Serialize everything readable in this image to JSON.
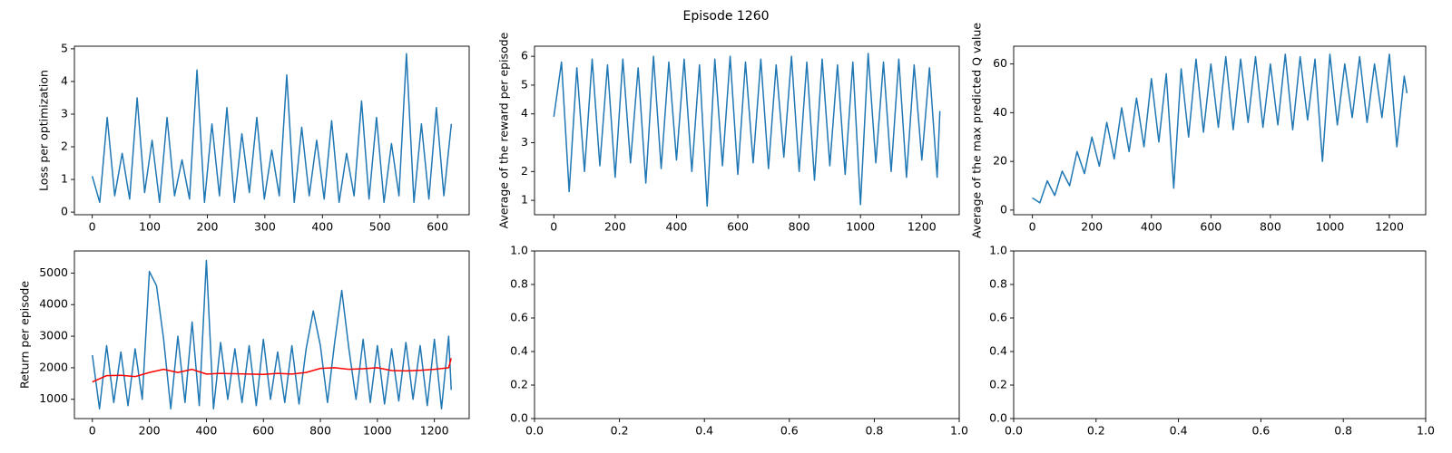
{
  "title": "Episode 1260",
  "chart_data": [
    {
      "type": "line",
      "ylabel": "Loss per optimization",
      "xlim": [
        -31,
        655
      ],
      "ylim": [
        -0.08,
        5.08
      ],
      "xticks": [
        0,
        100,
        200,
        300,
        400,
        500,
        600
      ],
      "yticks": [
        0,
        1,
        2,
        3,
        4,
        5
      ],
      "series": [
        {
          "color": "#1f77b4",
          "x": [
            0,
            13,
            26,
            39,
            52,
            65,
            78,
            91,
            104,
            117,
            130,
            143,
            156,
            169,
            182,
            195,
            208,
            221,
            234,
            247,
            260,
            273,
            286,
            299,
            312,
            325,
            338,
            351,
            364,
            377,
            390,
            403,
            416,
            429,
            442,
            455,
            468,
            481,
            494,
            507,
            520,
            533,
            546,
            559,
            572,
            585,
            598,
            611,
            624
          ],
          "values": [
            1.1,
            0.3,
            2.9,
            0.5,
            1.8,
            0.4,
            3.5,
            0.6,
            2.2,
            0.3,
            2.9,
            0.5,
            1.6,
            0.4,
            4.35,
            0.3,
            2.7,
            0.5,
            3.2,
            0.3,
            2.4,
            0.6,
            2.9,
            0.4,
            1.9,
            0.5,
            4.2,
            0.3,
            2.6,
            0.5,
            2.2,
            0.4,
            2.8,
            0.3,
            1.8,
            0.5,
            3.4,
            0.4,
            2.9,
            0.3,
            2.1,
            0.5,
            4.85,
            0.3,
            2.7,
            0.4,
            3.2,
            0.5,
            2.7
          ]
        }
      ]
    },
    {
      "type": "line",
      "ylabel": "Average of the reward per episode",
      "xlim": [
        -63,
        1322
      ],
      "ylim": [
        0.5,
        6.35
      ],
      "xticks": [
        0,
        200,
        400,
        600,
        800,
        1000,
        1200
      ],
      "yticks": [
        1,
        2,
        3,
        4,
        5,
        6
      ],
      "series": [
        {
          "color": "#1f77b4",
          "x": [
            0,
            25,
            50,
            75,
            100,
            125,
            150,
            175,
            200,
            225,
            250,
            275,
            300,
            325,
            350,
            375,
            400,
            425,
            450,
            475,
            500,
            525,
            550,
            575,
            600,
            625,
            650,
            675,
            700,
            725,
            750,
            775,
            800,
            825,
            850,
            875,
            900,
            925,
            950,
            975,
            1000,
            1025,
            1050,
            1075,
            1100,
            1125,
            1150,
            1175,
            1200,
            1225,
            1250,
            1259
          ],
          "values": [
            3.9,
            5.8,
            1.3,
            5.6,
            2.0,
            5.9,
            2.2,
            5.7,
            1.8,
            5.9,
            2.3,
            5.6,
            1.6,
            6.0,
            2.1,
            5.8,
            2.4,
            5.9,
            2.0,
            5.7,
            0.8,
            5.9,
            2.2,
            6.0,
            1.9,
            5.8,
            2.3,
            5.9,
            2.1,
            5.7,
            2.5,
            6.0,
            2.0,
            5.8,
            1.7,
            5.9,
            2.2,
            5.7,
            1.9,
            5.8,
            0.85,
            6.1,
            2.3,
            5.8,
            2.0,
            5.9,
            1.8,
            5.7,
            2.4,
            5.6,
            1.8,
            4.1
          ]
        }
      ]
    },
    {
      "type": "line",
      "ylabel": "Average of the max predicted Q value",
      "xlim": [
        -63,
        1322
      ],
      "ylim": [
        -1.9,
        67.3
      ],
      "xticks": [
        0,
        200,
        400,
        600,
        800,
        1000,
        1200
      ],
      "yticks": [
        0,
        20,
        40,
        60
      ],
      "series": [
        {
          "color": "#1f77b4",
          "x": [
            0,
            25,
            50,
            75,
            100,
            125,
            150,
            175,
            200,
            225,
            250,
            275,
            300,
            325,
            350,
            375,
            400,
            425,
            450,
            475,
            500,
            525,
            550,
            575,
            600,
            625,
            650,
            675,
            700,
            725,
            750,
            775,
            800,
            825,
            850,
            875,
            900,
            925,
            950,
            975,
            1000,
            1025,
            1050,
            1075,
            1100,
            1125,
            1150,
            1175,
            1200,
            1225,
            1250,
            1259
          ],
          "values": [
            5,
            3,
            12,
            6,
            16,
            10,
            24,
            15,
            30,
            18,
            36,
            21,
            42,
            24,
            46,
            26,
            54,
            28,
            56,
            9,
            58,
            30,
            62,
            32,
            60,
            34,
            63,
            33,
            62,
            36,
            63,
            34,
            60,
            35,
            64,
            33,
            63,
            37,
            62,
            20,
            64,
            35,
            60,
            38,
            63,
            36,
            60,
            38,
            64,
            26,
            55,
            48
          ]
        }
      ]
    },
    {
      "type": "line",
      "ylabel": "Return per episode",
      "xlim": [
        -63,
        1322
      ],
      "ylim": [
        390,
        5700
      ],
      "xticks": [
        0,
        200,
        400,
        600,
        800,
        1000,
        1200
      ],
      "yticks": [
        1000,
        2000,
        3000,
        4000,
        5000
      ],
      "series": [
        {
          "color": "#1f77b4",
          "x": [
            0,
            25,
            50,
            75,
            100,
            125,
            150,
            175,
            200,
            225,
            250,
            275,
            300,
            325,
            350,
            375,
            400,
            425,
            450,
            475,
            500,
            525,
            550,
            575,
            600,
            625,
            650,
            675,
            700,
            725,
            750,
            775,
            800,
            825,
            850,
            875,
            900,
            925,
            950,
            975,
            1000,
            1025,
            1050,
            1075,
            1100,
            1125,
            1150,
            1175,
            1200,
            1225,
            1250,
            1259
          ],
          "values": [
            2400,
            700,
            2700,
            900,
            2500,
            800,
            2600,
            1000,
            5050,
            4600,
            2900,
            700,
            3000,
            900,
            3450,
            800,
            5400,
            700,
            2800,
            1000,
            2600,
            900,
            2700,
            800,
            2900,
            1000,
            2500,
            900,
            2700,
            850,
            2600,
            3800,
            2700,
            900,
            2800,
            4450,
            2600,
            1000,
            2900,
            900,
            2700,
            850,
            2600,
            950,
            2800,
            1000,
            2700,
            800,
            2900,
            700,
            3000,
            1300
          ]
        },
        {
          "color": "#ff0000",
          "x": [
            0,
            50,
            100,
            150,
            200,
            250,
            300,
            350,
            400,
            450,
            500,
            550,
            600,
            650,
            700,
            750,
            800,
            850,
            900,
            950,
            1000,
            1050,
            1100,
            1150,
            1200,
            1250,
            1259
          ],
          "values": [
            1550,
            1750,
            1760,
            1720,
            1850,
            1950,
            1850,
            1950,
            1800,
            1820,
            1810,
            1800,
            1790,
            1820,
            1800,
            1850,
            1980,
            2000,
            1950,
            1970,
            2000,
            1910,
            1900,
            1920,
            1950,
            2000,
            2300
          ]
        }
      ]
    },
    {
      "type": "line",
      "xlim": [
        0,
        1
      ],
      "ylim": [
        0,
        1
      ],
      "series": [],
      "xticks": [
        {
          "value": 0,
          "label": "0.0"
        },
        {
          "value": 0.2,
          "label": "0.2"
        },
        {
          "value": 0.4,
          "label": "0.4"
        },
        {
          "value": 0.6,
          "label": "0.6"
        },
        {
          "value": 0.8,
          "label": "0.8"
        },
        {
          "value": 1,
          "label": "1.0"
        }
      ],
      "yticks": [
        {
          "value": 0,
          "label": "0.0"
        },
        {
          "value": 0.2,
          "label": "0.2"
        },
        {
          "value": 0.4,
          "label": "0.4"
        },
        {
          "value": 0.6,
          "label": "0.6"
        },
        {
          "value": 0.8,
          "label": "0.8"
        },
        {
          "value": 1,
          "label": "1.0"
        }
      ]
    },
    {
      "type": "line",
      "xlim": [
        0,
        1
      ],
      "ylim": [
        0,
        1
      ],
      "series": [],
      "xticks": [
        {
          "value": 0,
          "label": "0.0"
        },
        {
          "value": 0.2,
          "label": "0.2"
        },
        {
          "value": 0.4,
          "label": "0.4"
        },
        {
          "value": 0.6,
          "label": "0.6"
        },
        {
          "value": 0.8,
          "label": "0.8"
        },
        {
          "value": 1,
          "label": "1.0"
        }
      ],
      "yticks": [
        {
          "value": 0,
          "label": "0.0"
        },
        {
          "value": 0.2,
          "label": "0.2"
        },
        {
          "value": 0.4,
          "label": "0.4"
        },
        {
          "value": 0.6,
          "label": "0.6"
        },
        {
          "value": 0.8,
          "label": "0.8"
        },
        {
          "value": 1,
          "label": "1.0"
        }
      ]
    }
  ]
}
